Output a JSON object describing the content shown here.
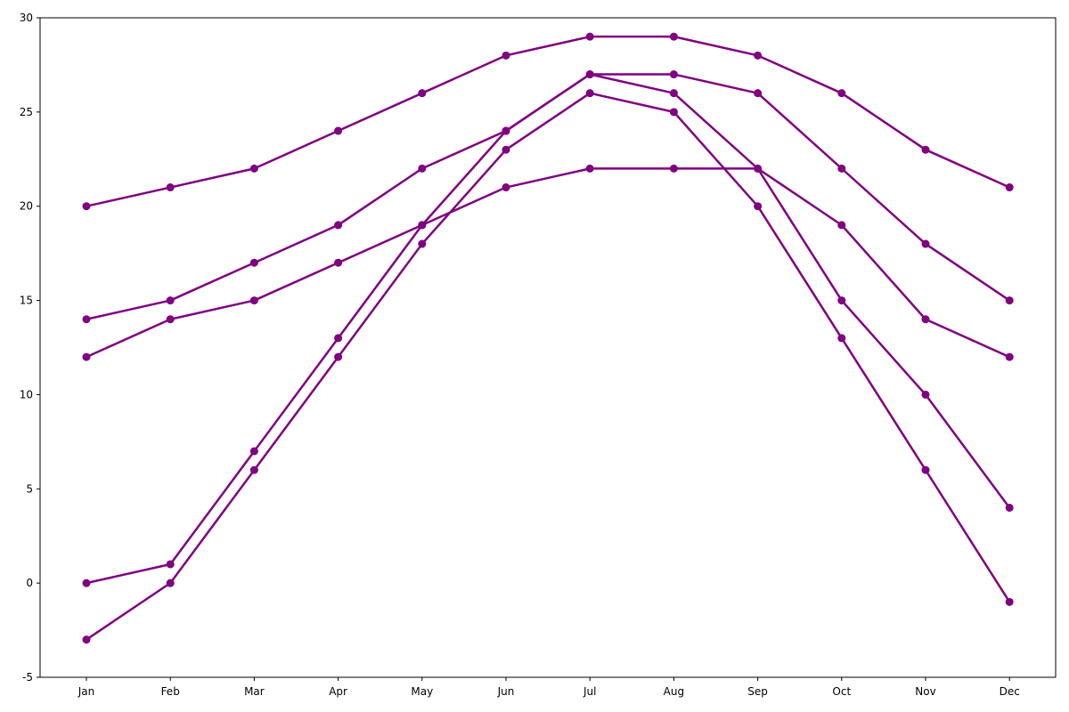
{
  "chart_data": {
    "type": "line",
    "categories": [
      "Jan",
      "Feb",
      "Mar",
      "Apr",
      "May",
      "Jun",
      "Jul",
      "Aug",
      "Sep",
      "Oct",
      "Nov",
      "Dec"
    ],
    "ylim": [
      -5,
      30
    ],
    "yticks": [
      -5,
      0,
      5,
      10,
      15,
      20,
      25,
      30
    ],
    "grid": false,
    "line_color": "#800080",
    "series": [
      {
        "values": [
          20,
          21,
          22,
          24,
          26,
          28,
          29,
          29,
          28,
          26,
          23,
          21
        ]
      },
      {
        "values": [
          14,
          15,
          17,
          19,
          22,
          24,
          27,
          27,
          26,
          22,
          18,
          15
        ]
      },
      {
        "values": [
          12,
          14,
          15,
          17,
          19,
          21,
          22,
          22,
          22,
          19,
          14,
          12
        ]
      },
      {
        "values": [
          0,
          1,
          7,
          13,
          19,
          24,
          27,
          26,
          22,
          15,
          10,
          4
        ]
      },
      {
        "values": [
          -3,
          0,
          6,
          12,
          18,
          23,
          26,
          25,
          20,
          13,
          6,
          -1
        ]
      }
    ]
  }
}
